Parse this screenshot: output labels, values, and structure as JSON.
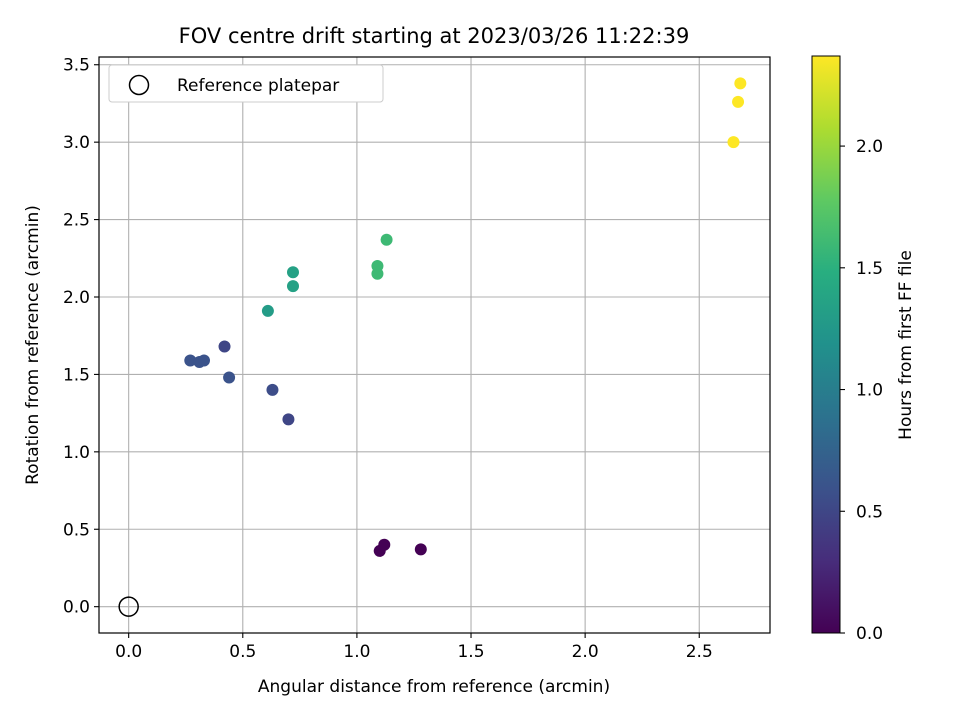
{
  "chart_data": {
    "type": "scatter",
    "title": "FOV centre drift starting at 2023/03/26 11:22:39",
    "xlabel": "Angular distance from reference (arcmin)",
    "ylabel": "Rotation from reference (arcmin)",
    "xlim": [
      -0.13,
      2.81
    ],
    "ylim": [
      -0.17,
      3.55
    ],
    "xticks": [
      0.0,
      0.5,
      1.0,
      1.5,
      2.0,
      2.5
    ],
    "xtick_labels": [
      "0.0",
      "0.5",
      "1.0",
      "1.5",
      "2.0",
      "2.5"
    ],
    "yticks": [
      0.0,
      0.5,
      1.0,
      1.5,
      2.0,
      2.5,
      3.0,
      3.5
    ],
    "ytick_labels": [
      "0.0",
      "0.5",
      "1.0",
      "1.5",
      "2.0",
      "2.5",
      "3.0",
      "3.5"
    ],
    "grid": true,
    "legend": {
      "position": "top-left",
      "entries": [
        "Reference platepar"
      ]
    },
    "reference_point": {
      "name": "Reference platepar",
      "x": 0.0,
      "y": 0.0
    },
    "colorbar": {
      "label": "Hours from first FF file",
      "cmap": "viridis",
      "range": [
        0.0,
        2.37
      ],
      "ticks": [
        0.0,
        0.5,
        1.0,
        1.5,
        2.0
      ],
      "tick_labels": [
        "0.0",
        "0.5",
        "1.0",
        "1.5",
        "2.0"
      ]
    },
    "points": [
      {
        "x": 1.1,
        "y": 0.36,
        "hours": 0.0
      },
      {
        "x": 1.12,
        "y": 0.4,
        "hours": 0.0
      },
      {
        "x": 1.28,
        "y": 0.37,
        "hours": 0.0
      },
      {
        "x": 0.27,
        "y": 1.59,
        "hours": 0.6
      },
      {
        "x": 0.31,
        "y": 1.58,
        "hours": 0.6
      },
      {
        "x": 0.33,
        "y": 1.59,
        "hours": 0.6
      },
      {
        "x": 0.42,
        "y": 1.68,
        "hours": 0.5
      },
      {
        "x": 0.44,
        "y": 1.48,
        "hours": 0.6
      },
      {
        "x": 0.63,
        "y": 1.4,
        "hours": 0.55
      },
      {
        "x": 0.7,
        "y": 1.21,
        "hours": 0.5
      },
      {
        "x": 0.61,
        "y": 1.91,
        "hours": 1.3
      },
      {
        "x": 0.72,
        "y": 2.16,
        "hours": 1.35
      },
      {
        "x": 0.72,
        "y": 2.07,
        "hours": 1.35
      },
      {
        "x": 1.09,
        "y": 2.2,
        "hours": 1.6
      },
      {
        "x": 1.09,
        "y": 2.15,
        "hours": 1.6
      },
      {
        "x": 1.13,
        "y": 2.37,
        "hours": 1.6
      },
      {
        "x": 2.65,
        "y": 3.0,
        "hours": 2.37
      },
      {
        "x": 2.67,
        "y": 3.26,
        "hours": 2.37
      },
      {
        "x": 2.68,
        "y": 3.38,
        "hours": 2.37
      }
    ]
  }
}
